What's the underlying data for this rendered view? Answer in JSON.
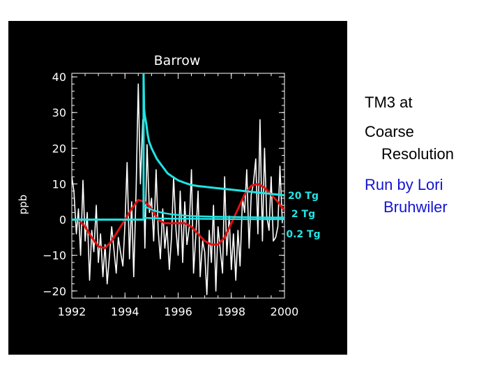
{
  "side_notes": {
    "line1": "TM3 at",
    "line2": "Coarse",
    "line3": "Resolution",
    "line4": "Run by Lori",
    "line5": "Bruhwiler",
    "credit_color": "#1414d2"
  },
  "chart_data": {
    "type": "line",
    "title": "Barrow",
    "xlabel": "",
    "ylabel": "ppb",
    "xlim": [
      1992,
      2000
    ],
    "ylim": [
      -22,
      41
    ],
    "x_ticks": [
      1992,
      1994,
      1996,
      1998,
      2000
    ],
    "x_tick_labels": [
      "1992",
      "1994",
      "1996",
      "1998",
      "2000"
    ],
    "y_ticks": [
      -20,
      -10,
      0,
      10,
      20,
      30,
      40
    ],
    "y_tick_labels": [
      "−20",
      "−10",
      "0",
      "10",
      "20",
      "30",
      "40"
    ],
    "grid": false,
    "background": "#000000",
    "axis_color": "#ffffff",
    "series": [
      {
        "name": "",
        "color": "#ffffff",
        "x": [
          1992.0,
          1992.08,
          1992.17,
          1992.25,
          1992.33,
          1992.42,
          1992.5,
          1992.58,
          1992.67,
          1992.75,
          1992.83,
          1992.92,
          1993.0,
          1993.08,
          1993.17,
          1993.25,
          1993.33,
          1993.42,
          1993.5,
          1993.58,
          1993.67,
          1993.75,
          1993.83,
          1993.92,
          1994.0,
          1994.08,
          1994.17,
          1994.25,
          1994.33,
          1994.42,
          1994.5,
          1994.58,
          1994.67,
          1994.75,
          1994.83,
          1994.92,
          1995.0,
          1995.08,
          1995.17,
          1995.25,
          1995.33,
          1995.42,
          1995.5,
          1995.58,
          1995.67,
          1995.75,
          1995.83,
          1995.92,
          1996.0,
          1996.08,
          1996.17,
          1996.25,
          1996.33,
          1996.42,
          1996.5,
          1996.58,
          1996.67,
          1996.75,
          1996.83,
          1996.92,
          1997.0,
          1997.08,
          1997.17,
          1997.25,
          1997.33,
          1997.42,
          1997.5,
          1997.58,
          1997.67,
          1997.75,
          1997.83,
          1997.92,
          1998.0,
          1998.08,
          1998.17,
          1998.25,
          1998.33,
          1998.42,
          1998.5,
          1998.58,
          1998.67,
          1998.75,
          1998.83,
          1998.92,
          1999.0,
          1999.08,
          1999.17,
          1999.25,
          1999.33,
          1999.42,
          1999.5,
          1999.58,
          1999.67,
          1999.75,
          1999.83,
          1999.92
        ],
        "y": [
          12,
          8,
          -4,
          3,
          -10,
          11,
          -6,
          2,
          -17,
          -3,
          -9,
          4,
          -12,
          -4,
          -16,
          -7,
          -18,
          -10,
          -2,
          -8,
          -15,
          -5,
          -9,
          -13,
          -1,
          16,
          -11,
          5,
          -16,
          9,
          38,
          10,
          28,
          -8,
          21,
          2,
          6,
          -6,
          14,
          -3,
          -11,
          3,
          -8,
          -2,
          -14,
          -5,
          12,
          -3,
          -10,
          8,
          -12,
          5,
          -7,
          -2,
          14,
          -15,
          -4,
          8,
          -16,
          -6,
          -9,
          -21,
          -3,
          -12,
          4,
          -20,
          -2,
          -8,
          -15,
          12,
          -10,
          1,
          -14,
          -4,
          -17,
          -3,
          -13,
          6,
          2,
          14,
          -8,
          7,
          10,
          17,
          -4,
          28,
          -6,
          20,
          1,
          -3,
          12,
          -6,
          -5,
          -2,
          15,
          -1
        ]
      },
      {
        "name": "",
        "color": "#e21010",
        "x": [
          1992.0,
          1992.25,
          1992.5,
          1992.75,
          1993.0,
          1993.25,
          1993.5,
          1993.75,
          1994.0,
          1994.25,
          1994.5,
          1994.75,
          1995.0,
          1995.25,
          1995.5,
          1995.75,
          1996.0,
          1996.25,
          1996.5,
          1996.75,
          1997.0,
          1997.25,
          1997.5,
          1997.75,
          1998.0,
          1998.25,
          1998.5,
          1998.75,
          1999.0,
          1999.25,
          1999.5,
          1999.75,
          2000.0
        ],
        "y": [
          0,
          0,
          -2,
          -5,
          -7.5,
          -8,
          -6,
          -3,
          0,
          3,
          5.5,
          5,
          3,
          0,
          -1,
          -1,
          -1,
          -1,
          -2,
          -4,
          -6,
          -7,
          -7,
          -5,
          -1,
          3,
          7,
          9.5,
          10,
          9,
          7,
          5,
          2.5
        ]
      },
      {
        "name": "20 Tg",
        "color": "#20e4e4",
        "x": [
          1992.0,
          1994.7,
          1994.7,
          1994.72,
          1994.75,
          1994.8,
          1994.85,
          1994.9,
          1995.0,
          1995.1,
          1995.2,
          1995.3,
          1995.4,
          1995.5,
          1995.6,
          1995.75,
          1996.0,
          1996.25,
          1996.5,
          1996.75,
          1997.0,
          1997.25,
          1997.5,
          1997.75,
          1998.0,
          1998.25,
          1998.5,
          1998.75,
          1999.0,
          1999.25,
          1999.5,
          1999.75,
          2000.0
        ],
        "y": [
          0,
          0,
          41,
          31,
          29,
          27,
          24,
          22,
          20,
          18.5,
          17,
          16,
          15,
          14,
          13,
          12.2,
          11,
          10.3,
          9.7,
          9.4,
          9.2,
          9.0,
          8.8,
          8.6,
          8.4,
          8.2,
          8.0,
          7.8,
          7.6,
          7.4,
          7.2,
          7.0,
          6.8
        ]
      },
      {
        "name": "2 Tg",
        "color": "#20e4e4",
        "x": [
          1992.0,
          1994.7,
          1994.7,
          1994.75,
          1994.85,
          1995.0,
          1995.2,
          1995.5,
          1995.75,
          1996.0,
          1996.5,
          1997.0,
          1997.5,
          1998.0,
          1998.5,
          1999.0,
          1999.5,
          2000.0
        ],
        "y": [
          0,
          0,
          4,
          3.8,
          3.3,
          2.8,
          2.3,
          1.8,
          1.5,
          1.3,
          1.0,
          0.9,
          0.8,
          0.75,
          0.7,
          0.65,
          0.6,
          0.6
        ]
      },
      {
        "name": "0.2 Tg",
        "color": "#20e4e4",
        "x": [
          1992.0,
          1994.7,
          1994.7,
          1995.0,
          1995.5,
          1996.0,
          1997.0,
          1998.0,
          1999.0,
          2000.0
        ],
        "y": [
          0,
          0,
          0.5,
          0.4,
          0.3,
          0.25,
          0.2,
          0.15,
          0.1,
          0.1
        ]
      }
    ],
    "series_labels_color": "#20e4e4"
  }
}
